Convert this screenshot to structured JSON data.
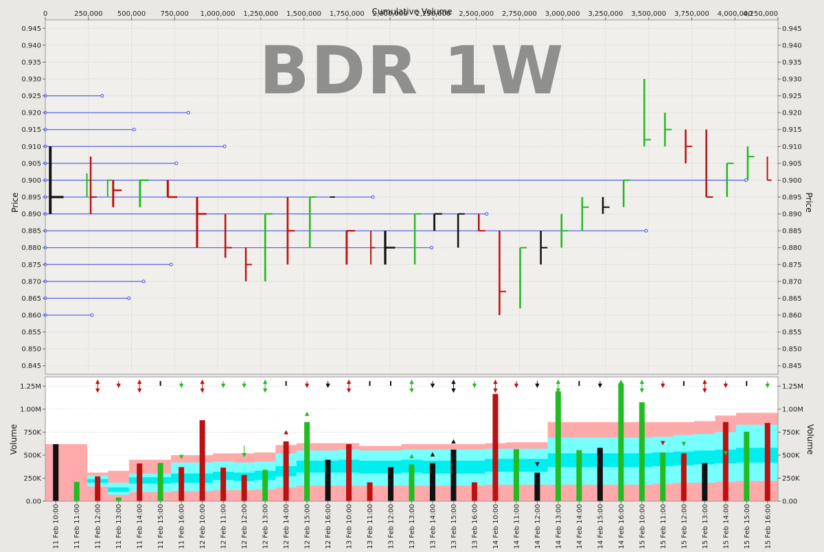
{
  "chart_data": [
    {
      "type": "bar",
      "subtype": "price-range-bars-by-cumulative-volume",
      "watermark": "BDR 1W",
      "xlabel": "Cumulative Volume",
      "ylabel": "Price",
      "ylabel_right": "Price",
      "xlim": [
        0,
        4250000
      ],
      "ylim": [
        0.8425,
        0.9475
      ],
      "x_tick_labels": [
        "0",
        "250,000",
        "500,000",
        "750,000",
        "1,000,000",
        "1,250,000",
        "1,500,000",
        "1,750,000",
        "2,000,000",
        "2,250,000",
        "2,500,000",
        "2,750,000",
        "3,000,000",
        "3,250,000",
        "3,500,000",
        "3,750,000",
        "4,000,000",
        "4,250,000"
      ],
      "y_tick_labels": [
        "0.845",
        "0.850",
        "0.855",
        "0.860",
        "0.865",
        "0.870",
        "0.875",
        "0.880",
        "0.885",
        "0.890",
        "0.895",
        "0.900",
        "0.905",
        "0.910",
        "0.915",
        "0.920",
        "0.925",
        "0.930",
        "0.935",
        "0.940",
        "0.945"
      ],
      "grid": true,
      "colors": {
        "up": "#22bb22",
        "down": "#bb1111",
        "neutral": "#111111",
        "level_line": "#3344ee",
        "background": "#f0efeb",
        "grid": "#d8d6d0"
      },
      "price_levels": [
        {
          "price": 0.925,
          "volume": 330000
        },
        {
          "price": 0.92,
          "volume": 830000
        },
        {
          "price": 0.915,
          "volume": 515000
        },
        {
          "price": 0.91,
          "volume": 1040000
        },
        {
          "price": 0.905,
          "volume": 760000
        },
        {
          "price": 0.9,
          "volume": 4065000
        },
        {
          "price": 0.895,
          "volume": 1900000
        },
        {
          "price": 0.89,
          "volume": 2560000
        },
        {
          "price": 0.885,
          "volume": 3485000
        },
        {
          "price": 0.88,
          "volume": 2240000
        },
        {
          "price": 0.875,
          "volume": 730000
        },
        {
          "price": 0.87,
          "volume": 570000
        },
        {
          "price": 0.865,
          "volume": 485000
        },
        {
          "price": 0.86,
          "volume": 270000
        }
      ],
      "bars": [
        {
          "period": "11 Feb 10:00",
          "x0": 0,
          "x1": 240000,
          "low": 0.89,
          "high": 0.91,
          "open": 0.89,
          "close": 0.895,
          "dir": "neutral"
        },
        {
          "period": "11 Feb 11:00",
          "x0": 240000,
          "x1": 250000,
          "low": 0.895,
          "high": 0.902,
          "open": 0.895,
          "close": 0.9,
          "dir": "up"
        },
        {
          "period": "11 Feb 12:00",
          "x0": 250000,
          "x1": 360000,
          "low": 0.89,
          "high": 0.907,
          "open": 0.905,
          "close": 0.895,
          "dir": "down"
        },
        {
          "period": "11 Feb 13:00",
          "x0": 360000,
          "x1": 375000,
          "low": 0.895,
          "high": 0.9,
          "open": 0.895,
          "close": 0.9,
          "dir": "up"
        },
        {
          "period": "11 Feb 14:00",
          "x0": 375000,
          "x1": 530000,
          "low": 0.892,
          "high": 0.9,
          "open": 0.9,
          "close": 0.897,
          "dir": "down"
        },
        {
          "period": "11 Feb 15:00",
          "x0": 530000,
          "x1": 690000,
          "low": 0.892,
          "high": 0.9,
          "open": 0.895,
          "close": 0.9,
          "dir": "up"
        },
        {
          "period": "11 Feb 16:00",
          "x0": 690000,
          "x1": 860000,
          "low": 0.895,
          "high": 0.9,
          "open": 0.9,
          "close": 0.895,
          "dir": "down"
        },
        {
          "period": "12 Feb 10:00",
          "x0": 860000,
          "x1": 1030000,
          "low": 0.88,
          "high": 0.895,
          "open": 0.893,
          "close": 0.89,
          "dir": "down"
        },
        {
          "period": "12 Feb 11:00",
          "x0": 1030000,
          "x1": 1150000,
          "low": 0.877,
          "high": 0.89,
          "open": 0.89,
          "close": 0.88,
          "dir": "down"
        },
        {
          "period": "12 Feb 12:00",
          "x0": 1150000,
          "x1": 1260000,
          "low": 0.87,
          "high": 0.88,
          "open": 0.88,
          "close": 0.875,
          "dir": "down"
        },
        {
          "period": "12 Feb 13:00",
          "x0": 1260000,
          "x1": 1390000,
          "low": 0.87,
          "high": 0.89,
          "open": 0.885,
          "close": 0.89,
          "dir": "up"
        },
        {
          "period": "12 Feb 14:00",
          "x0": 1390000,
          "x1": 1520000,
          "low": 0.875,
          "high": 0.895,
          "open": 0.893,
          "close": 0.885,
          "dir": "down"
        },
        {
          "period": "12 Feb 15:00",
          "x0": 1520000,
          "x1": 1640000,
          "low": 0.88,
          "high": 0.895,
          "open": 0.88,
          "close": 0.895,
          "dir": "up"
        },
        {
          "period": "12 Feb 16:00",
          "x0": 1640000,
          "x1": 1730000,
          "low": 0.895,
          "high": 0.895,
          "open": 0.895,
          "close": 0.895,
          "dir": "neutral"
        },
        {
          "period": "13 Feb 10:00",
          "x0": 1730000,
          "x1": 1880000,
          "low": 0.875,
          "high": 0.885,
          "open": 0.885,
          "close": 0.885,
          "dir": "down"
        },
        {
          "period": "13 Feb 11:00",
          "x0": 1880000,
          "x1": 1950000,
          "low": 0.875,
          "high": 0.885,
          "open": 0.883,
          "close": 0.88,
          "dir": "down"
        },
        {
          "period": "13 Feb 12:00",
          "x0": 1950000,
          "x1": 2130000,
          "low": 0.875,
          "high": 0.885,
          "open": 0.88,
          "close": 0.88,
          "dir": "neutral"
        },
        {
          "period": "13 Feb 13:00",
          "x0": 2130000,
          "x1": 2240000,
          "low": 0.875,
          "high": 0.89,
          "open": 0.88,
          "close": 0.89,
          "dir": "up"
        },
        {
          "period": "13 Feb 14:00",
          "x0": 2240000,
          "x1": 2380000,
          "low": 0.885,
          "high": 0.89,
          "open": 0.89,
          "close": 0.89,
          "dir": "neutral"
        },
        {
          "period": "13 Feb 15:00",
          "x0": 2380000,
          "x1": 2500000,
          "low": 0.88,
          "high": 0.89,
          "open": 0.89,
          "close": 0.89,
          "dir": "neutral"
        },
        {
          "period": "13 Feb 16:00",
          "x0": 2500000,
          "x1": 2620000,
          "low": 0.885,
          "high": 0.89,
          "open": 0.89,
          "close": 0.885,
          "dir": "down"
        },
        {
          "period": "14 Feb 10:00",
          "x0": 2620000,
          "x1": 2740000,
          "low": 0.86,
          "high": 0.885,
          "open": 0.885,
          "close": 0.867,
          "dir": "down"
        },
        {
          "period": "14 Feb 11:00",
          "x0": 2740000,
          "x1": 2860000,
          "low": 0.862,
          "high": 0.88,
          "open": 0.87,
          "close": 0.88,
          "dir": "up"
        },
        {
          "period": "14 Feb 12:00",
          "x0": 2860000,
          "x1": 2980000,
          "low": 0.875,
          "high": 0.885,
          "open": 0.88,
          "close": 0.88,
          "dir": "neutral"
        },
        {
          "period": "14 Feb 13:00",
          "x0": 2980000,
          "x1": 3100000,
          "low": 0.88,
          "high": 0.89,
          "open": 0.882,
          "close": 0.885,
          "dir": "up"
        },
        {
          "period": "14 Feb 14:00",
          "x0": 3100000,
          "x1": 3220000,
          "low": 0.885,
          "high": 0.895,
          "open": 0.887,
          "close": 0.892,
          "dir": "up"
        },
        {
          "period": "14 Feb 15:00",
          "x0": 3220000,
          "x1": 3340000,
          "low": 0.89,
          "high": 0.895,
          "open": 0.892,
          "close": 0.892,
          "dir": "neutral"
        },
        {
          "period": "14 Feb 16:00",
          "x0": 3340000,
          "x1": 3460000,
          "low": 0.892,
          "high": 0.9,
          "open": 0.892,
          "close": 0.9,
          "dir": "up"
        },
        {
          "period": "15 Feb 10:00",
          "x0": 3460000,
          "x1": 3580000,
          "low": 0.91,
          "high": 0.93,
          "open": 0.91,
          "close": 0.912,
          "dir": "up"
        },
        {
          "period": "15 Feb 11:00",
          "x0": 3580000,
          "x1": 3700000,
          "low": 0.91,
          "high": 0.92,
          "open": 0.912,
          "close": 0.915,
          "dir": "up"
        },
        {
          "period": "15 Feb 12:00",
          "x0": 3700000,
          "x1": 3820000,
          "low": 0.905,
          "high": 0.915,
          "open": 0.912,
          "close": 0.91,
          "dir": "down"
        },
        {
          "period": "15 Feb 13:00",
          "x0": 3820000,
          "x1": 3940000,
          "low": 0.895,
          "high": 0.915,
          "open": 0.905,
          "close": 0.895,
          "dir": "down"
        },
        {
          "period": "15 Feb 14:00",
          "x0": 3940000,
          "x1": 4060000,
          "low": 0.895,
          "high": 0.905,
          "open": 0.897,
          "close": 0.905,
          "dir": "up"
        },
        {
          "period": "15 Feb 15:00",
          "x0": 4060000,
          "x1": 4180000,
          "low": 0.9,
          "high": 0.91,
          "open": 0.902,
          "close": 0.907,
          "dir": "up"
        },
        {
          "period": "15 Feb 16:00",
          "x0": 4180000,
          "x1": 4250000,
          "low": 0.9,
          "high": 0.907,
          "open": 0.905,
          "close": 0.9,
          "dir": "down"
        }
      ]
    },
    {
      "type": "bar",
      "subtype": "volume-with-bands",
      "ylabel": "Volume",
      "ylabel_right": "Volume",
      "ylim": [
        0,
        1350000
      ],
      "y_tick_labels": [
        "0.00",
        "250K",
        "500K",
        "750K",
        "1.00M",
        "1.25M"
      ],
      "y_tick_values": [
        0,
        250000,
        500000,
        750000,
        1000000,
        1250000
      ],
      "grid": true,
      "colors": {
        "up": "#22bb22",
        "down": "#bb1111",
        "neutral": "#111111",
        "outer_band": "#ffaaaa",
        "middle_band": "#77ffff",
        "inner_band": "#00eeee",
        "background": "#ffffff"
      },
      "categories": [
        "11 Feb 10:00",
        "11 Feb 11:00",
        "11 Feb 12:00",
        "11 Feb 13:00",
        "11 Feb 14:00",
        "11 Feb 15:00",
        "11 Feb 16:00",
        "12 Feb 10:00",
        "12 Feb 11:00",
        "12 Feb 12:00",
        "12 Feb 13:00",
        "12 Feb 14:00",
        "12 Feb 15:00",
        "12 Feb 16:00",
        "13 Feb 10:00",
        "13 Feb 11:00",
        "13 Feb 12:00",
        "13 Feb 13:00",
        "13 Feb 14:00",
        "13 Feb 15:00",
        "13 Feb 16:00",
        "14 Feb 10:00",
        "14 Feb 11:00",
        "14 Feb 12:00",
        "14 Feb 13:00",
        "14 Feb 14:00",
        "14 Feb 15:00",
        "14 Feb 16:00",
        "15 Feb 10:00",
        "15 Feb 11:00",
        "15 Feb 12:00",
        "15 Feb 13:00",
        "15 Feb 14:00",
        "15 Feb 15:00",
        "15 Feb 16:00"
      ],
      "values": [
        620000,
        210000,
        270000,
        40000,
        410000,
        415000,
        370000,
        880000,
        365000,
        285000,
        340000,
        650000,
        860000,
        450000,
        620000,
        205000,
        370000,
        400000,
        415000,
        560000,
        205000,
        1165000,
        565000,
        310000,
        1195000,
        555000,
        580000,
        1280000,
        1075000,
        530000,
        520000,
        415000,
        860000,
        755000,
        850000
      ],
      "directions": [
        "neutral",
        "up",
        "down",
        "up",
        "down",
        "up",
        "down",
        "down",
        "down",
        "down",
        "up",
        "down",
        "up",
        "neutral",
        "down",
        "down",
        "neutral",
        "up",
        "neutral",
        "neutral",
        "down",
        "down",
        "up",
        "neutral",
        "up",
        "up",
        "neutral",
        "up",
        "up",
        "up",
        "down",
        "neutral",
        "down",
        "up",
        "down"
      ],
      "band_outer_upper": [
        620000,
        620000,
        310000,
        330000,
        450000,
        450000,
        500000,
        500000,
        520000,
        520000,
        530000,
        610000,
        630000,
        630000,
        630000,
        600000,
        600000,
        620000,
        620000,
        620000,
        620000,
        630000,
        640000,
        640000,
        860000,
        860000,
        860000,
        860000,
        860000,
        860000,
        860000,
        870000,
        930000,
        960000,
        960000
      ],
      "band_middle_upper": [
        0,
        0,
        280000,
        200000,
        300000,
        300000,
        420000,
        420000,
        430000,
        420000,
        430000,
        520000,
        550000,
        550000,
        560000,
        550000,
        550000,
        560000,
        560000,
        560000,
        560000,
        570000,
        570000,
        570000,
        690000,
        690000,
        690000,
        690000,
        690000,
        700000,
        720000,
        730000,
        750000,
        830000,
        830000
      ],
      "band_inner_upper": [
        0,
        0,
        240000,
        150000,
        260000,
        260000,
        300000,
        300000,
        320000,
        310000,
        330000,
        380000,
        440000,
        440000,
        450000,
        440000,
        440000,
        450000,
        440000,
        440000,
        440000,
        460000,
        460000,
        460000,
        520000,
        520000,
        520000,
        520000,
        520000,
        530000,
        540000,
        550000,
        560000,
        580000,
        580000
      ],
      "band_inner_lower": [
        0,
        0,
        200000,
        100000,
        190000,
        190000,
        200000,
        200000,
        230000,
        220000,
        230000,
        270000,
        310000,
        310000,
        310000,
        300000,
        300000,
        310000,
        300000,
        300000,
        300000,
        320000,
        320000,
        320000,
        370000,
        370000,
        370000,
        370000,
        370000,
        380000,
        390000,
        400000,
        410000,
        420000,
        420000
      ],
      "band_middle_lower": [
        0,
        0,
        160000,
        70000,
        100000,
        100000,
        110000,
        110000,
        120000,
        120000,
        130000,
        150000,
        170000,
        170000,
        170000,
        170000,
        170000,
        170000,
        170000,
        170000,
        170000,
        180000,
        180000,
        180000,
        180000,
        180000,
        180000,
        180000,
        180000,
        190000,
        200000,
        200000,
        210000,
        220000,
        220000
      ],
      "band_outer_lower": [
        0,
        0,
        0,
        0,
        0,
        0,
        0,
        0,
        0,
        0,
        0,
        0,
        0,
        0,
        0,
        0,
        0,
        0,
        0,
        0,
        0,
        0,
        0,
        0,
        0,
        0,
        0,
        0,
        0,
        0,
        0,
        0,
        0,
        0,
        0
      ],
      "signals": [
        "none",
        "none",
        "both-red",
        "down-red",
        "both-red",
        "tick-black",
        "down-green",
        "both-red",
        "down-green",
        "down-green",
        "both-green",
        "tick-black",
        "down-red",
        "down-black",
        "both-red",
        "tick-black",
        "tick-black",
        "both-green",
        "down-black",
        "both-black",
        "down-green",
        "both-red",
        "down-red",
        "down-black",
        "both-green",
        "tick-black",
        "down-black",
        "up-green",
        "both-green",
        "down-red",
        "tick-black",
        "both-red",
        "down-red",
        "tick-black",
        "down-green"
      ],
      "annotations": [
        {
          "category": "12 Feb 14:00",
          "symbol": "up",
          "color": "red",
          "volume": 750000
        },
        {
          "category": "12 Feb 15:00",
          "symbol": "up",
          "color": "green",
          "volume": 950000
        },
        {
          "category": "11 Feb 16:00",
          "symbol": "down",
          "color": "green",
          "volume": 480000
        },
        {
          "category": "12 Feb 12:00",
          "symbol": "arrow-down",
          "color": "green",
          "volume": 500000
        },
        {
          "category": "13 Feb 13:00",
          "symbol": "up",
          "color": "green",
          "volume": 490000
        },
        {
          "category": "13 Feb 14:00",
          "symbol": "up",
          "color": "black",
          "volume": 510000
        },
        {
          "category": "13 Feb 15:00",
          "symbol": "up",
          "color": "black",
          "volume": 650000
        },
        {
          "category": "14 Feb 12:00",
          "symbol": "down",
          "color": "black",
          "volume": 400000
        },
        {
          "category": "15 Feb 11:00",
          "symbol": "down",
          "color": "red",
          "volume": 630000
        },
        {
          "category": "15 Feb 12:00",
          "symbol": "down",
          "color": "green",
          "volume": 620000
        },
        {
          "category": "15 Feb 14:00",
          "symbol": "down",
          "color": "green",
          "volume": 520000
        }
      ]
    }
  ]
}
